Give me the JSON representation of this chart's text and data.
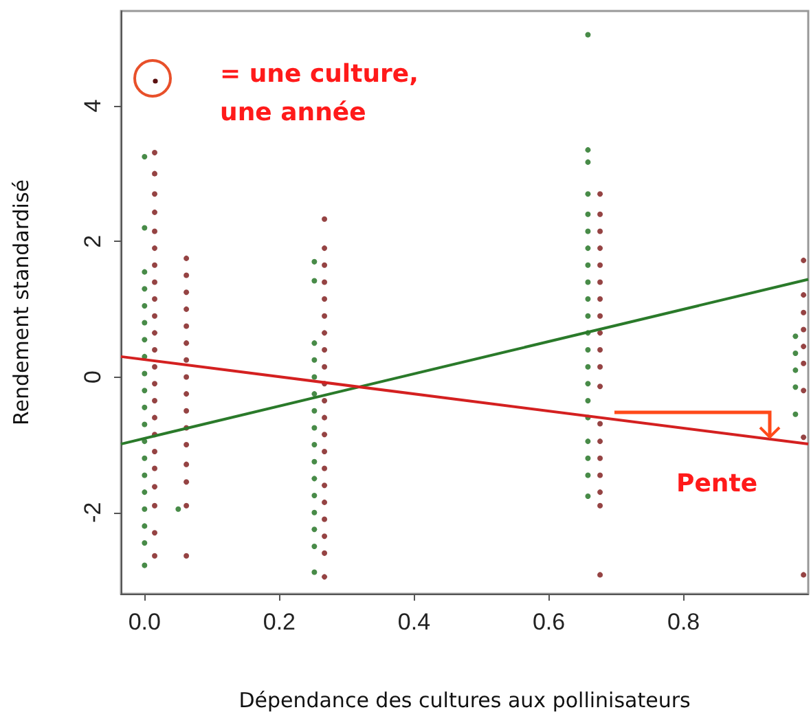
{
  "chart_data": {
    "type": "scatter",
    "xlabel": "Dépendance des cultures aux pollinisateurs",
    "ylabel": "Rendement standardisé",
    "annotations": [
      "= une culture, une année",
      "Pente"
    ],
    "xlim": [
      -0.035,
      0.985
    ],
    "ylim": [
      -3.2,
      5.4
    ],
    "xticks": [
      {
        "value": 0,
        "label": "0.0"
      },
      0.2,
      0.4,
      0.6,
      0.8
    ],
    "yticks": [
      -2,
      0,
      2,
      4
    ],
    "grid": false,
    "marker": "circle",
    "series": [
      {
        "type": "scatter",
        "color": "#1a6e1a",
        "x": [
          0,
          0,
          0,
          0,
          0,
          0,
          0,
          0,
          0,
          0,
          0,
          0,
          0,
          0,
          0,
          0,
          0,
          0,
          0,
          0,
          0.05,
          0.252,
          0.252,
          0.252,
          0.252,
          0.252,
          0.252,
          0.252,
          0.252,
          0.252,
          0.252,
          0.252,
          0.252,
          0.252,
          0.252,
          0.252,
          0.252,
          0.658,
          0.658,
          0.658,
          0.658,
          0.658,
          0.658,
          0.658,
          0.658,
          0.658,
          0.658,
          0.658,
          0.658,
          0.658,
          0.658,
          0.658,
          0.658,
          0.658,
          0.658,
          0.658,
          0.658,
          0.658,
          0.966,
          0.966,
          0.966,
          0.966,
          0.966
        ],
        "values": [
          3.25,
          2.2,
          1.55,
          1.3,
          1.05,
          0.8,
          0.55,
          0.3,
          0.05,
          -0.2,
          -0.45,
          -0.7,
          -0.95,
          -1.2,
          -1.45,
          -1.7,
          -1.95,
          -2.2,
          -2.45,
          -2.78,
          -1.95,
          1.7,
          1.42,
          0.5,
          0.25,
          0,
          -0.25,
          -0.5,
          -0.75,
          -1,
          -1.25,
          -1.5,
          -1.75,
          -2,
          -2.25,
          -2.5,
          -2.88,
          5.05,
          3.35,
          3.17,
          2.7,
          2.4,
          2.15,
          1.9,
          1.65,
          1.4,
          1.15,
          0.9,
          0.65,
          0.4,
          0.15,
          -0.1,
          -0.35,
          -0.6,
          -0.95,
          -1.2,
          -1.45,
          -1.76,
          0.6,
          0.35,
          0.1,
          -0.15,
          -0.55
        ]
      },
      {
        "type": "scatter",
        "color": "#7a1414",
        "x": [
          0.015,
          0.015,
          0.015,
          0.015,
          0.015,
          0.015,
          0.015,
          0.015,
          0.015,
          0.015,
          0.015,
          0.015,
          0.015,
          0.015,
          0.015,
          0.015,
          0.015,
          0.015,
          0.015,
          0.015,
          0.015,
          0.015,
          0.015,
          0.062,
          0.062,
          0.062,
          0.062,
          0.062,
          0.062,
          0.062,
          0.062,
          0.062,
          0.062,
          0.062,
          0.062,
          0.062,
          0.062,
          0.062,
          0.062,
          0.267,
          0.267,
          0.267,
          0.267,
          0.267,
          0.267,
          0.267,
          0.267,
          0.267,
          0.267,
          0.267,
          0.267,
          0.267,
          0.267,
          0.267,
          0.267,
          0.267,
          0.267,
          0.267,
          0.267,
          0.267,
          0.676,
          0.676,
          0.676,
          0.676,
          0.676,
          0.676,
          0.676,
          0.676,
          0.676,
          0.676,
          0.676,
          0.676,
          0.676,
          0.676,
          0.676,
          0.676,
          0.676,
          0.676,
          0.676,
          0.978,
          0.978,
          0.978,
          0.978,
          0.978,
          0.978,
          0.978,
          0.978,
          0.978
        ],
        "values": [
          3.31,
          3.0,
          2.7,
          2.43,
          2.15,
          1.9,
          1.65,
          1.4,
          1.15,
          0.9,
          0.65,
          0.4,
          0.15,
          -0.1,
          -0.35,
          -0.6,
          -0.85,
          -1.1,
          -1.35,
          -1.62,
          -1.9,
          -2.3,
          -2.64,
          1.75,
          1.5,
          1.25,
          1.0,
          0.75,
          0.5,
          0.25,
          0,
          -0.25,
          -0.5,
          -0.75,
          -1.0,
          -1.29,
          -1.55,
          -1.9,
          -2.64,
          2.33,
          1.9,
          1.65,
          1.4,
          1.15,
          0.9,
          0.65,
          0.4,
          0.15,
          -0.1,
          -0.35,
          -0.6,
          -0.85,
          -1.1,
          -1.35,
          -1.6,
          -1.85,
          -2.1,
          -2.35,
          -2.6,
          -2.95,
          2.7,
          2.4,
          2.15,
          1.9,
          1.65,
          1.4,
          1.15,
          0.9,
          0.65,
          0.4,
          0.15,
          -0.14,
          -0.69,
          -0.95,
          -1.2,
          -1.45,
          -1.7,
          -1.9,
          -2.92,
          1.72,
          1.21,
          0.95,
          0.7,
          0.45,
          0.2,
          -0.2,
          -0.89,
          -2.92
        ]
      },
      {
        "type": "line",
        "color": "#2a7a2a",
        "line_style": "solid",
        "marker": "none",
        "x": [
          -0.035,
          0.985
        ],
        "values": [
          -0.99,
          1.44
        ]
      },
      {
        "type": "line",
        "color": "#d42020",
        "line_style": "solid",
        "marker": "none",
        "x": [
          -0.035,
          0.985
        ],
        "values": [
          0.3,
          -0.99
        ]
      }
    ]
  }
}
